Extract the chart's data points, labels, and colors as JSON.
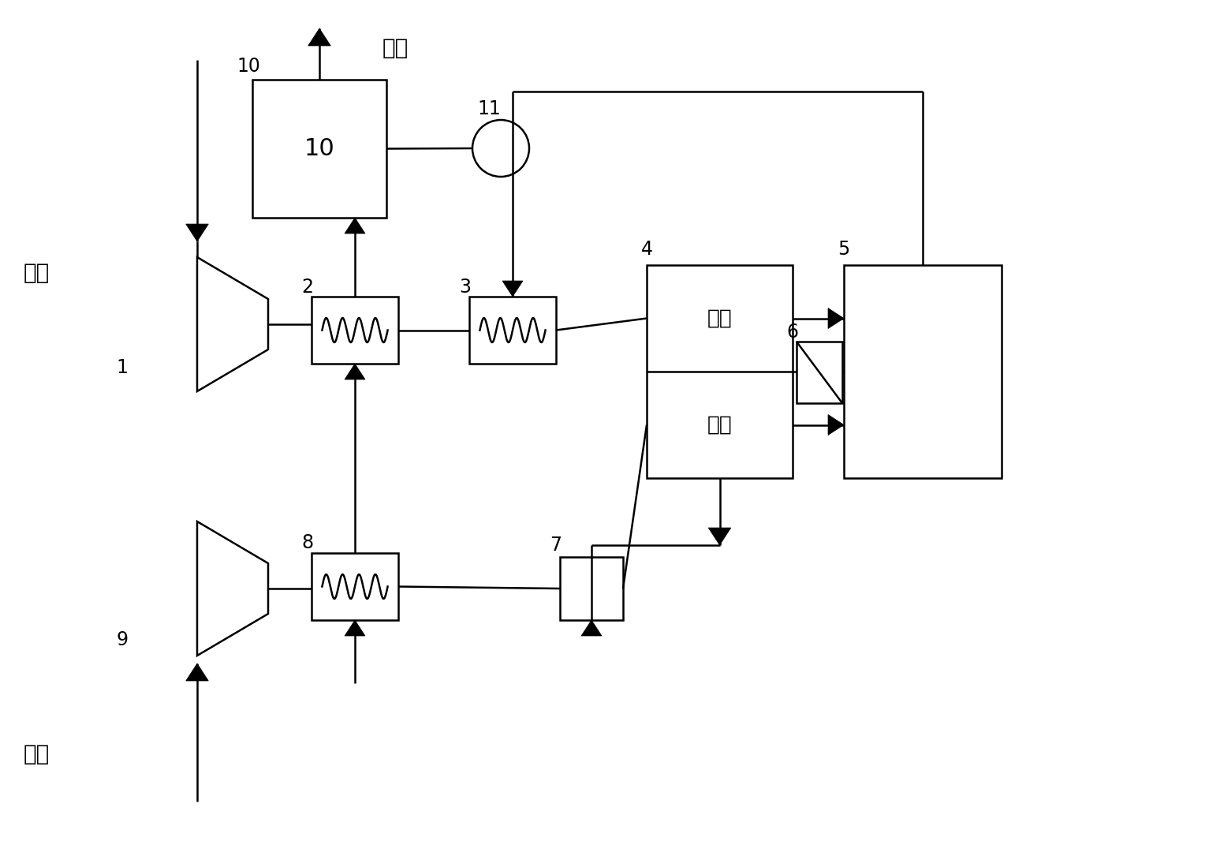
{
  "bg_color": "#ffffff",
  "lc": "#000000",
  "lw": 1.8,
  "labels": {
    "kongqi": "空气",
    "paiq": "排气",
    "ranliao": "燃料",
    "yinjie": "阴极",
    "yangjie": "阳极",
    "n1": "1",
    "n2": "2",
    "n3": "3",
    "n4": "4",
    "n5": "5",
    "n6": "6",
    "n7": "7",
    "n8": "8",
    "n9": "9",
    "n10": "10",
    "n11": "11"
  },
  "font_size_label": 20,
  "font_size_num": 17
}
